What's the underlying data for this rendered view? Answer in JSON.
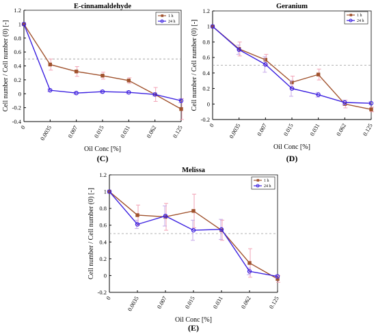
{
  "colors": {
    "s1h": "#a0522d",
    "s24h": "#3a1fe0",
    "err1h": "#f2a2b4",
    "err24h": "#c5a8e8",
    "ref": "#999999"
  },
  "chart_data": [
    {
      "type": "line",
      "panel": "(C)",
      "title": "E-cinnamaldehyde",
      "xlabel": "Oil Conc [%]",
      "ylabel": "Cell number / Cell number (0) [-]",
      "categories": [
        "0",
        "0.0035",
        "0.007",
        "0.015",
        "0.031",
        "0.062",
        "0.125"
      ],
      "ylim": [
        -0.4,
        1.2
      ],
      "yticks": [
        "-0.4",
        "-0.2",
        "0",
        "0.2",
        "0.4",
        "0.6",
        "0.8",
        "1",
        "1.2"
      ],
      "reference_line": 0.5,
      "legend_position": "top-right",
      "series": [
        {
          "name": "1 h",
          "values": [
            1.0,
            0.42,
            0.32,
            0.26,
            0.19,
            -0.01,
            -0.22
          ],
          "errors": [
            0,
            0.08,
            0.07,
            0.05,
            0.04,
            0.1,
            0.15
          ]
        },
        {
          "name": "24 h",
          "values": [
            1.0,
            0.05,
            0.01,
            0.03,
            0.02,
            -0.01,
            -0.1
          ],
          "errors": [
            0,
            0.02,
            0.02,
            0.02,
            0.02,
            0.02,
            0.03
          ]
        }
      ]
    },
    {
      "type": "line",
      "panel": "(D)",
      "title": "Geranium",
      "xlabel": "Oil Conc [%]",
      "ylabel": "Cell number / Cell number (0) [-]",
      "categories": [
        "0",
        "0.0035",
        "0.007",
        "0.015",
        "0.031",
        "0.062",
        "0.125"
      ],
      "ylim": [
        -0.2,
        1.2
      ],
      "yticks": [
        "-0.2",
        "0",
        "0.2",
        "0.4",
        "0.6",
        "0.8",
        "1",
        "1.2"
      ],
      "reference_line": 0.5,
      "legend_position": "top-right",
      "series": [
        {
          "name": "1 h",
          "values": [
            1.0,
            0.71,
            0.57,
            0.28,
            0.38,
            0.0,
            -0.07
          ],
          "errors": [
            0,
            0.09,
            0.07,
            0.08,
            0.07,
            0.05,
            0.03
          ]
        },
        {
          "name": "24 h",
          "values": [
            1.0,
            0.7,
            0.51,
            0.2,
            0.12,
            0.02,
            0.01
          ],
          "errors": [
            0,
            0.06,
            0.1,
            0.1,
            0.03,
            0.03,
            0.02
          ]
        }
      ]
    },
    {
      "type": "line",
      "panel": "(E)",
      "title": "Melissa",
      "xlabel": "Oil Conc [%]",
      "ylabel": "Cell number / Cell number (0) [-]",
      "categories": [
        "0",
        "0.0035",
        "0.007",
        "0.015",
        "0.031",
        "0.062",
        "0.125"
      ],
      "ylim": [
        -0.2,
        1.2
      ],
      "yticks": [
        "-0.2",
        "0",
        "0.2",
        "0.4",
        "0.6",
        "0.8",
        "1",
        "1.2"
      ],
      "reference_line": 0.5,
      "legend_position": "top-right",
      "series": [
        {
          "name": "1 h",
          "values": [
            1.0,
            0.72,
            0.7,
            0.77,
            0.54,
            0.15,
            -0.04
          ],
          "errors": [
            0,
            0.12,
            0.16,
            0.2,
            0.12,
            0.17,
            0.04
          ]
        },
        {
          "name": "24 h",
          "values": [
            1.0,
            0.61,
            0.71,
            0.54,
            0.55,
            0.05,
            -0.01
          ],
          "errors": [
            0,
            0.05,
            0.12,
            0.12,
            0.12,
            0.04,
            0.02
          ]
        }
      ]
    }
  ]
}
